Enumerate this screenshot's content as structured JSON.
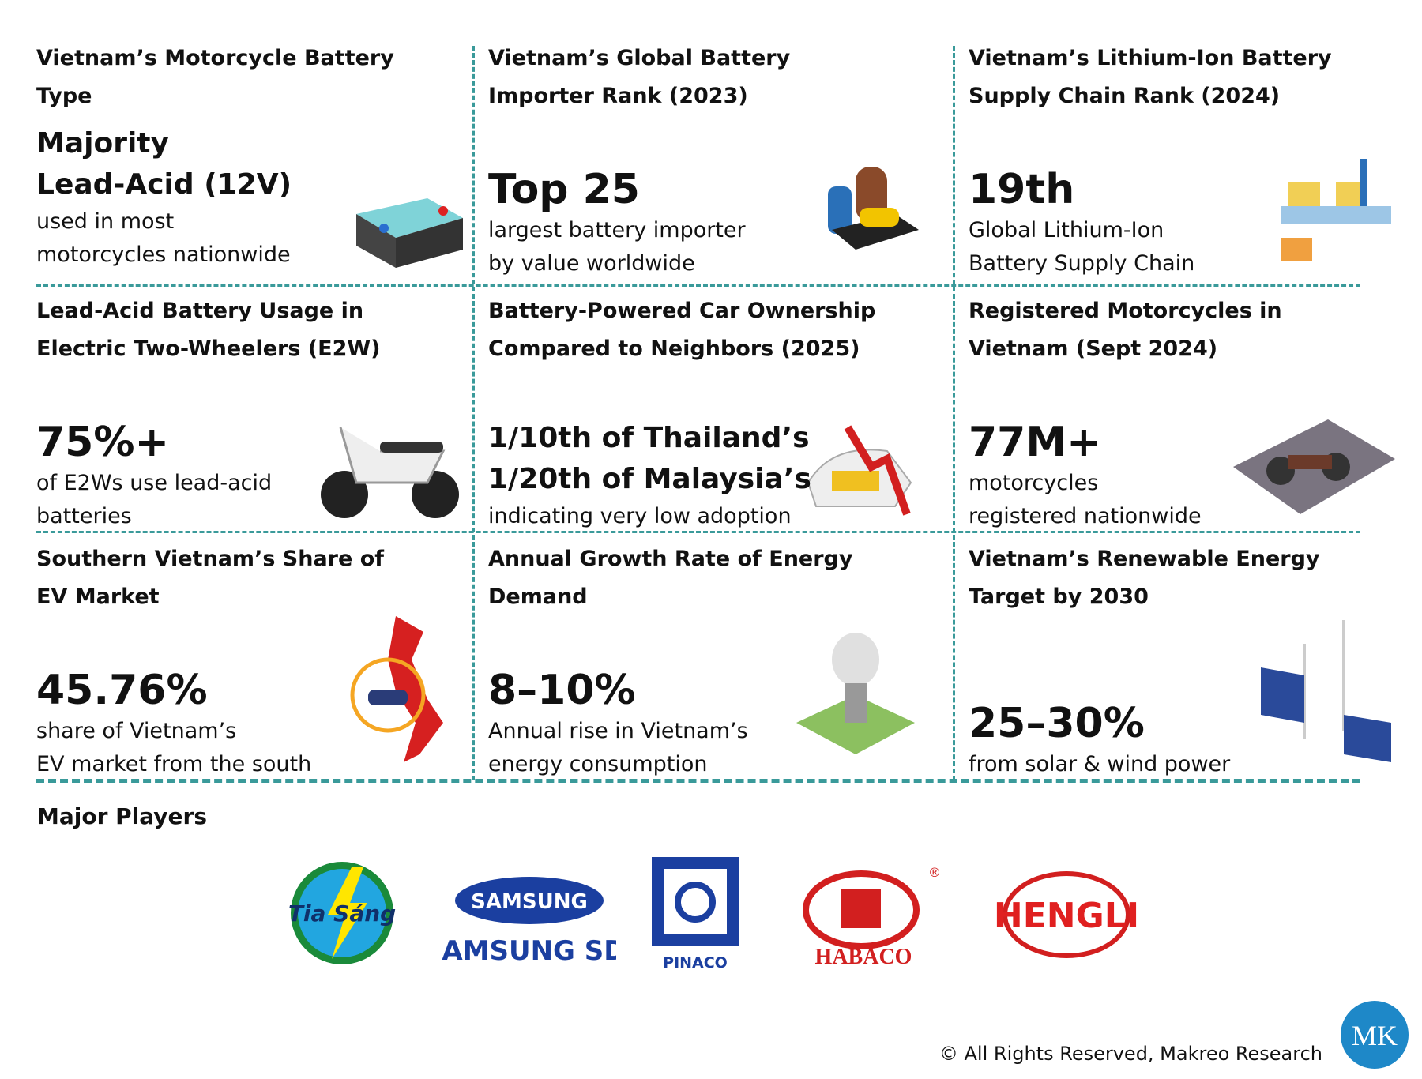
{
  "cells": [
    {
      "title": [
        "Vietnam’s Motorcycle Battery",
        "Type"
      ],
      "headline": [
        "Majority",
        "Lead-Acid (12V)"
      ],
      "text": [
        "used in most",
        "motorcycles nationwide"
      ]
    },
    {
      "title": [
        "Vietnam’s Global Battery",
        "Importer Rank (2023)"
      ],
      "headline": [
        "Top 25"
      ],
      "text": [
        "largest battery importer",
        "by value worldwide"
      ]
    },
    {
      "title": [
        "Vietnam’s Lithium-Ion Battery",
        "Supply Chain Rank (2024)"
      ],
      "headline": [
        "19th"
      ],
      "text": [
        "Global Lithium-Ion",
        "Battery Supply Chain"
      ]
    },
    {
      "title": [
        "Lead-Acid Battery Usage in",
        "Electric Two-Wheelers (E2W)"
      ],
      "headline": [
        "75%+"
      ],
      "text": [
        "of E2Ws use lead-acid",
        "batteries"
      ]
    },
    {
      "title": [
        "Battery-Powered Car Ownership",
        "Compared to Neighbors (2025)"
      ],
      "headline": [
        "1/10th of Thailand’s",
        "1/20th of Malaysia’s"
      ],
      "text": [
        "indicating very low adoption"
      ]
    },
    {
      "title": [
        "Registered Motorcycles in",
        "Vietnam (Sept 2024)"
      ],
      "headline": [
        "77M+"
      ],
      "text": [
        "motorcycles",
        "registered nationwide"
      ]
    },
    {
      "title": [
        "Southern Vietnam’s Share of",
        "EV Market"
      ],
      "headline": [
        "45.76%"
      ],
      "text": [
        "share of Vietnam’s",
        "EV market from the south"
      ]
    },
    {
      "title": [
        "Annual Growth Rate of Energy",
        "Demand"
      ],
      "headline": [
        "8–10%"
      ],
      "text": [
        "Annual rise in Vietnam’s",
        "energy consumption"
      ]
    },
    {
      "title": [
        "Vietnam’s Renewable Energy",
        "Target by 2030"
      ],
      "headline": [
        "25–30%"
      ],
      "text": [
        "from solar & wind power"
      ]
    }
  ],
  "players_heading": "Major Players",
  "players": [
    "Tia Sáng",
    "SAMSUNG",
    "SAMSUNG SDI",
    "PINACO",
    "HABACO",
    "HENGLI"
  ],
  "footer": "© All Rights Reserved, Makreo Research",
  "brand": "MK"
}
